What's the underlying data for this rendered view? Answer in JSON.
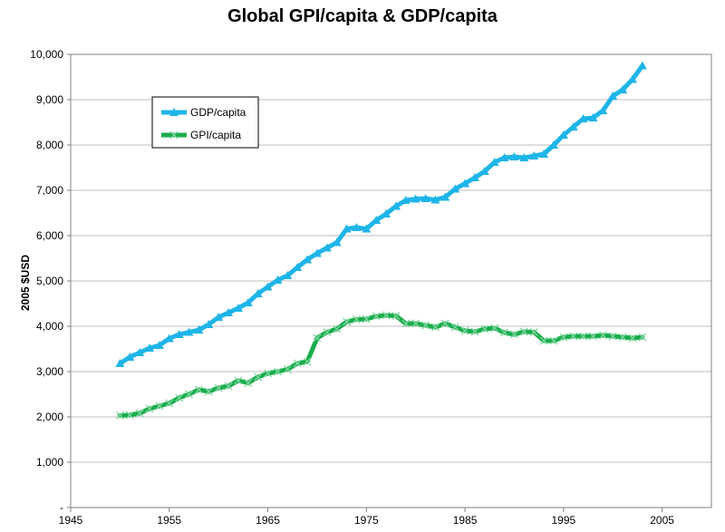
{
  "chart_data": {
    "type": "line",
    "title": "Global GPI/capita & GDP/capita",
    "xlabel": "",
    "ylabel": "2005 $USD",
    "xlim": [
      1945,
      2010
    ],
    "ylim": [
      0,
      10000
    ],
    "x_ticks": [
      1945,
      1955,
      1965,
      1975,
      1985,
      1995,
      2005
    ],
    "x_tick_labels": [
      "1945",
      "1955",
      "1965",
      "1975",
      "1985",
      "1995",
      "2005"
    ],
    "y_ticks": [
      0,
      1000,
      2000,
      3000,
      4000,
      5000,
      6000,
      7000,
      8000,
      9000,
      10000
    ],
    "y_tick_labels": [
      "-",
      "1,000",
      "2,000",
      "3,000",
      "4,000",
      "5,000",
      "6,000",
      "7,000",
      "8,000",
      "9,000",
      "10,000"
    ],
    "grid": "horizontal",
    "legend_position": "top-left",
    "x": [
      1950,
      1951,
      1952,
      1953,
      1954,
      1955,
      1956,
      1957,
      1958,
      1959,
      1960,
      1961,
      1962,
      1963,
      1964,
      1965,
      1966,
      1967,
      1968,
      1969,
      1970,
      1971,
      1972,
      1973,
      1974,
      1975,
      1976,
      1977,
      1978,
      1979,
      1980,
      1981,
      1982,
      1983,
      1984,
      1985,
      1986,
      1987,
      1988,
      1989,
      1990,
      1991,
      1992,
      1993,
      1994,
      1995,
      1996,
      1997,
      1998,
      1999,
      2000,
      2001,
      2002,
      2003
    ],
    "series": [
      {
        "name": "GDP/capita",
        "color": "#1fb5e8",
        "marker": "triangle",
        "values": [
          3180,
          3320,
          3420,
          3520,
          3580,
          3730,
          3820,
          3870,
          3920,
          4040,
          4200,
          4300,
          4400,
          4520,
          4720,
          4870,
          5020,
          5120,
          5300,
          5470,
          5610,
          5730,
          5850,
          6150,
          6180,
          6150,
          6340,
          6480,
          6650,
          6780,
          6810,
          6820,
          6790,
          6850,
          7030,
          7150,
          7280,
          7420,
          7620,
          7720,
          7740,
          7720,
          7760,
          7800,
          8000,
          8220,
          8400,
          8580,
          8600,
          8760,
          9080,
          9220,
          9450,
          9750
        ]
      },
      {
        "name": "GPI/capita",
        "color": "#1aad4d",
        "marker": "x",
        "values": [
          2030,
          2040,
          2080,
          2180,
          2240,
          2300,
          2420,
          2500,
          2600,
          2560,
          2640,
          2680,
          2800,
          2750,
          2880,
          2960,
          3000,
          3050,
          3180,
          3220,
          3740,
          3870,
          3940,
          4100,
          4150,
          4160,
          4220,
          4240,
          4230,
          4060,
          4060,
          4020,
          3980,
          4060,
          3980,
          3900,
          3880,
          3940,
          3960,
          3860,
          3820,
          3880,
          3870,
          3680,
          3680,
          3760,
          3780,
          3780,
          3780,
          3800,
          3780,
          3760,
          3740,
          3760
        ]
      }
    ]
  }
}
